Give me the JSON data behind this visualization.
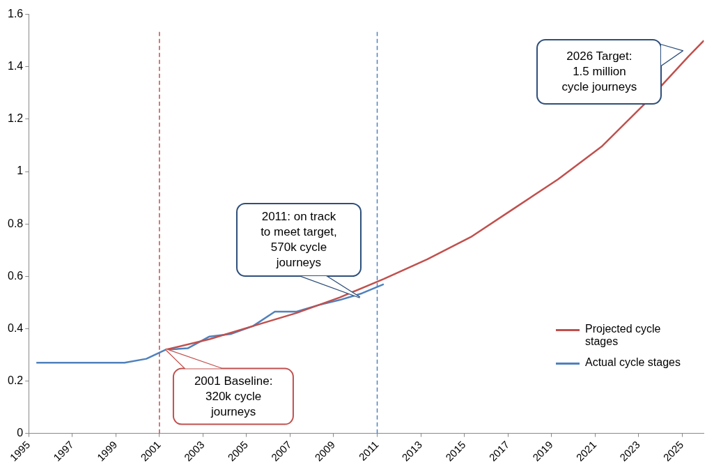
{
  "chart_data": {
    "type": "line",
    "xlim": [
      1995,
      2026
    ],
    "ylim": [
      0,
      1.6
    ],
    "xticks": [
      1995,
      1997,
      1999,
      2001,
      2003,
      2005,
      2007,
      2009,
      2011,
      2013,
      2015,
      2017,
      2019,
      2021,
      2023,
      2025
    ],
    "yticks": [
      0,
      0.2,
      0.4,
      0.6,
      0.8,
      1,
      1.2,
      1.4,
      1.6
    ],
    "grid": false,
    "legend": "bottom right",
    "marker": "none",
    "line_style": "solid",
    "series": [
      {
        "name": "Projected cycle stages",
        "color": "#c0504d",
        "x": [
          2001.3,
          2003.3,
          2005.3,
          2007.3,
          2009.3,
          2011.3,
          2013.3,
          2015.3,
          2017.3,
          2019.3,
          2021.3,
          2023.3,
          2025.3,
          2026
        ],
        "values": [
          0.32,
          0.36,
          0.41,
          0.46,
          0.52,
          0.59,
          0.665,
          0.75,
          0.86,
          0.97,
          1.095,
          1.26,
          1.44,
          1.5
        ]
      },
      {
        "name": "Actual cycle stages",
        "color": "#4f81bd",
        "x": [
          1995.35,
          1999.4,
          2000.4,
          2001.3,
          2002.3,
          2003.3,
          2004.3,
          2005.3,
          2006.3,
          2007.3,
          2008.3,
          2009.3,
          2010.3,
          2011.3
        ],
        "values": [
          0.27,
          0.27,
          0.285,
          0.32,
          0.325,
          0.37,
          0.38,
          0.41,
          0.465,
          0.465,
          0.49,
          0.51,
          0.535,
          0.57
        ]
      }
    ],
    "ref_lines": [
      {
        "axis": "x",
        "value": 2001,
        "label": null,
        "color": "#c0504d",
        "line_style": "dashed"
      },
      {
        "axis": "x",
        "value": 2011,
        "label": null,
        "color": "#4f81bd",
        "line_style": "dashed"
      }
    ],
    "annotations": [
      {
        "text": "2001 Baseline:\n320k cycle\njourneys",
        "x": 2001.3,
        "y": 0.32
      },
      {
        "text": "2011: on track\nto meet target,\n570k cycle\njourneys",
        "x": 2010.2,
        "y": 0.52
      },
      "2026 Target:\n1.5 million\ncycle journeys"
    ]
  }
}
